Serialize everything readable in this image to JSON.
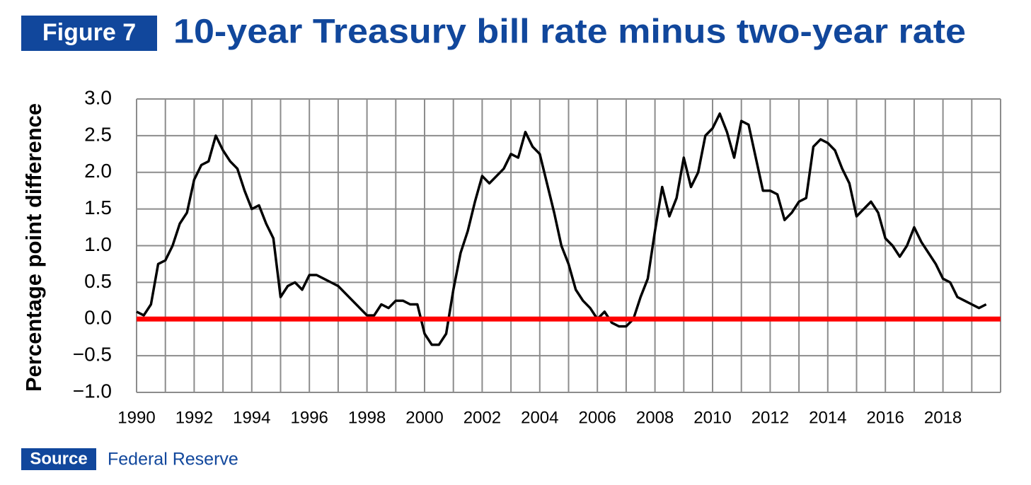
{
  "figure_label": "Figure 7",
  "chart_data": {
    "type": "line",
    "title": "10-year Treasury bill rate minus two-year rate",
    "ylabel": "Percentage point difference",
    "source_label": "Source",
    "source": "Federal Reserve",
    "xlim": [
      1990,
      2020
    ],
    "xticks": [
      1990,
      1992,
      1994,
      1996,
      1998,
      2000,
      2002,
      2004,
      2006,
      2008,
      2010,
      2012,
      2014,
      2016,
      2018
    ],
    "xgrid": [
      1990,
      1991,
      1992,
      1993,
      1994,
      1995,
      1996,
      1997,
      1998,
      1999,
      2000,
      2001,
      2002,
      2003,
      2004,
      2005,
      2006,
      2007,
      2008,
      2009,
      2010,
      2011,
      2012,
      2013,
      2014,
      2015,
      2016,
      2017,
      2018,
      2019,
      2020
    ],
    "ylim": [
      -1,
      3
    ],
    "yticks": [
      {
        "value": 3,
        "label": "3.0"
      },
      {
        "value": 2.5,
        "label": "2.5"
      },
      {
        "value": 2,
        "label": "2.0"
      },
      {
        "value": 1.5,
        "label": "1.5"
      },
      {
        "value": 1,
        "label": "1.0"
      },
      {
        "value": 0.5,
        "label": "0.5"
      },
      {
        "value": 0,
        "label": "0.0"
      },
      {
        "value": -0.5,
        "label": "−0.5"
      },
      {
        "value": -1,
        "label": "−1.0"
      }
    ],
    "grid": true,
    "reference_line": {
      "value": 0,
      "color": "#ff0000"
    },
    "x": [
      1990,
      1990.25,
      1990.5,
      1990.75,
      1991,
      1991.25,
      1991.5,
      1991.75,
      1992,
      1992.25,
      1992.5,
      1992.75,
      1993,
      1993.25,
      1993.5,
      1993.75,
      1994,
      1994.25,
      1994.5,
      1994.75,
      1995,
      1995.25,
      1995.5,
      1995.75,
      1996,
      1996.25,
      1996.5,
      1996.75,
      1997,
      1997.25,
      1997.5,
      1997.75,
      1998,
      1998.25,
      1998.5,
      1998.75,
      1999,
      1999.25,
      1999.5,
      1999.75,
      2000,
      2000.25,
      2000.5,
      2000.75,
      2001,
      2001.25,
      2001.5,
      2001.75,
      2002,
      2002.25,
      2002.5,
      2002.75,
      2003,
      2003.25,
      2003.5,
      2003.75,
      2004,
      2004.25,
      2004.5,
      2004.75,
      2005,
      2005.25,
      2005.5,
      2005.75,
      2006,
      2006.25,
      2006.5,
      2006.75,
      2007,
      2007.25,
      2007.5,
      2007.75,
      2008,
      2008.25,
      2008.5,
      2008.75,
      2009,
      2009.25,
      2009.5,
      2009.75,
      2010,
      2010.25,
      2010.5,
      2010.75,
      2011,
      2011.25,
      2011.5,
      2011.75,
      2012,
      2012.25,
      2012.5,
      2012.75,
      2013,
      2013.25,
      2013.5,
      2013.75,
      2014,
      2014.25,
      2014.5,
      2014.75,
      2015,
      2015.25,
      2015.5,
      2015.75,
      2016,
      2016.25,
      2016.5,
      2016.75,
      2017,
      2017.25,
      2017.5,
      2017.75,
      2018,
      2018.25,
      2018.5,
      2018.75,
      2019,
      2019.25,
      2019.5
    ],
    "series": [
      {
        "color": "#000000",
        "values": [
          0.1,
          0.05,
          0.2,
          0.75,
          0.8,
          1.0,
          1.3,
          1.45,
          1.9,
          2.1,
          2.15,
          2.5,
          2.3,
          2.15,
          2.05,
          1.75,
          1.5,
          1.55,
          1.3,
          1.1,
          0.3,
          0.45,
          0.5,
          0.4,
          0.6,
          0.6,
          0.55,
          0.5,
          0.45,
          0.35,
          0.25,
          0.15,
          0.05,
          0.05,
          0.2,
          0.15,
          0.25,
          0.25,
          0.2,
          0.2,
          -0.2,
          -0.35,
          -0.35,
          -0.2,
          0.4,
          0.9,
          1.2,
          1.6,
          1.95,
          1.85,
          1.95,
          2.05,
          2.25,
          2.2,
          2.55,
          2.35,
          2.25,
          1.85,
          1.45,
          1.0,
          0.75,
          0.4,
          0.25,
          0.15,
          0.0,
          0.1,
          -0.05,
          -0.1,
          -0.1,
          0.0,
          0.3,
          0.55,
          1.2,
          1.8,
          1.4,
          1.65,
          2.2,
          1.8,
          2.0,
          2.5,
          2.6,
          2.8,
          2.55,
          2.2,
          2.7,
          2.65,
          2.2,
          1.75,
          1.75,
          1.7,
          1.35,
          1.45,
          1.6,
          1.65,
          2.35,
          2.45,
          2.4,
          2.3,
          2.05,
          1.85,
          1.4,
          1.5,
          1.6,
          1.45,
          1.1,
          1.0,
          0.85,
          1.0,
          1.25,
          1.05,
          0.9,
          0.75,
          0.55,
          0.5,
          0.3,
          0.25,
          0.2,
          0.15,
          0.2
        ]
      }
    ]
  }
}
